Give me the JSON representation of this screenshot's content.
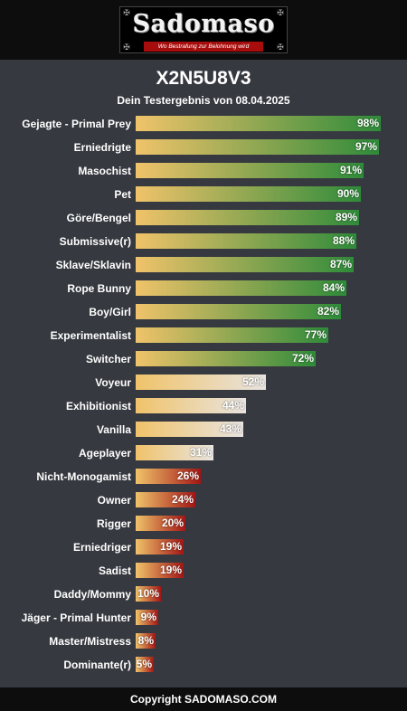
{
  "header": {
    "logo_text": "Sadomaso",
    "logo_tagline": "Wo Bestrafung zur Belohnung wird"
  },
  "title": "X2N5U8V3",
  "subtitle": "Dein Testergebnis von 08.04.2025",
  "footer": {
    "text": "Copyright SADOMASO.COM"
  },
  "colors": {
    "background": "#36393f",
    "bar_start": "#f0c36a",
    "high": "#2e8b3a",
    "mid": "#e8e4e0",
    "low": "#a31616"
  },
  "chart_data": {
    "type": "bar",
    "orientation": "horizontal",
    "xlim": [
      0,
      100
    ],
    "categories": [
      "Gejagte - Primal Prey",
      "Erniedrigte",
      "Masochist",
      "Pet",
      "Göre/Bengel",
      "Submissive(r)",
      "Sklave/Sklavin",
      "Rope Bunny",
      "Boy/Girl",
      "Experimentalist",
      "Switcher",
      "Voyeur",
      "Exhibitionist",
      "Vanilla",
      "Ageplayer",
      "Nicht-Monogamist",
      "Owner",
      "Rigger",
      "Erniedriger",
      "Sadist",
      "Daddy/Mommy",
      "Jäger - Primal Hunter",
      "Master/Mistress",
      "Dominante(r)"
    ],
    "values": [
      98,
      97,
      91,
      90,
      89,
      88,
      87,
      84,
      82,
      77,
      72,
      52,
      44,
      43,
      31,
      26,
      24,
      20,
      19,
      19,
      10,
      9,
      8,
      5
    ],
    "value_labels": [
      "98%",
      "97%",
      "91%",
      "90%",
      "89%",
      "88%",
      "87%",
      "84%",
      "82%",
      "77%",
      "72%",
      "52%",
      "44%",
      "43%",
      "31%",
      "26%",
      "24%",
      "20%",
      "19%",
      "19%",
      "10%",
      "9%",
      "8%",
      "5%"
    ],
    "bands": [
      "high",
      "high",
      "high",
      "high",
      "high",
      "high",
      "high",
      "high",
      "high",
      "high",
      "high",
      "mid",
      "mid",
      "mid",
      "mid",
      "low",
      "low",
      "low",
      "low",
      "low",
      "low",
      "low",
      "low",
      "low"
    ]
  }
}
